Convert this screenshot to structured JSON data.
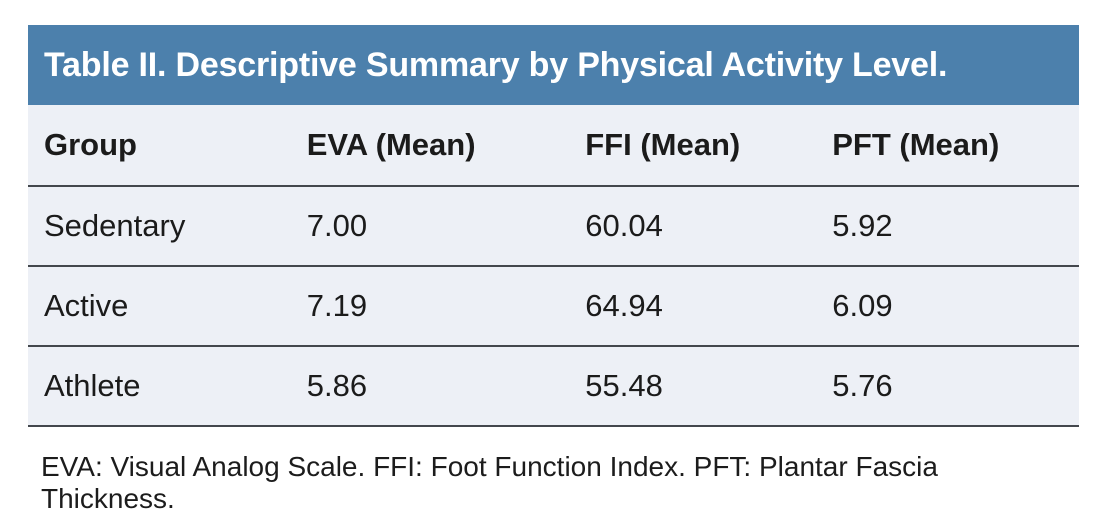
{
  "table": {
    "title": "Table II. Descriptive Summary by Physical Activity Level.",
    "columns": [
      "Group",
      "EVA (Mean)",
      "FFI (Mean)",
      "PFT (Mean)"
    ],
    "rows": [
      [
        "Sedentary",
        "7.00",
        "60.04",
        "5.92"
      ],
      [
        "Active",
        "7.19",
        "64.94",
        "6.09"
      ],
      [
        "Athlete",
        "5.86",
        "55.48",
        "5.76"
      ]
    ],
    "footnote": "EVA: Visual Analog Scale. FFI: Foot Function Index. PFT: Plantar Fascia Thickness."
  },
  "colors": {
    "title_band_bg": "#4c80ac",
    "title_text": "#ffffff",
    "row_bg": "#edf0f6",
    "divider": "#43474d",
    "body_text": "#1b1b1b",
    "page_bg": "#ffffff"
  },
  "chart_data": {
    "type": "table",
    "title": "Table II. Descriptive Summary by Physical Activity Level.",
    "categories": [
      "Sedentary",
      "Active",
      "Athlete"
    ],
    "series": [
      {
        "name": "EVA (Mean)",
        "values": [
          7.0,
          7.19,
          5.86
        ]
      },
      {
        "name": "FFI (Mean)",
        "values": [
          60.04,
          64.94,
          55.48
        ]
      },
      {
        "name": "PFT (Mean)",
        "values": [
          5.92,
          6.09,
          5.76
        ]
      }
    ],
    "footnote": "EVA: Visual Analog Scale. FFI: Foot Function Index. PFT: Plantar Fascia Thickness."
  }
}
